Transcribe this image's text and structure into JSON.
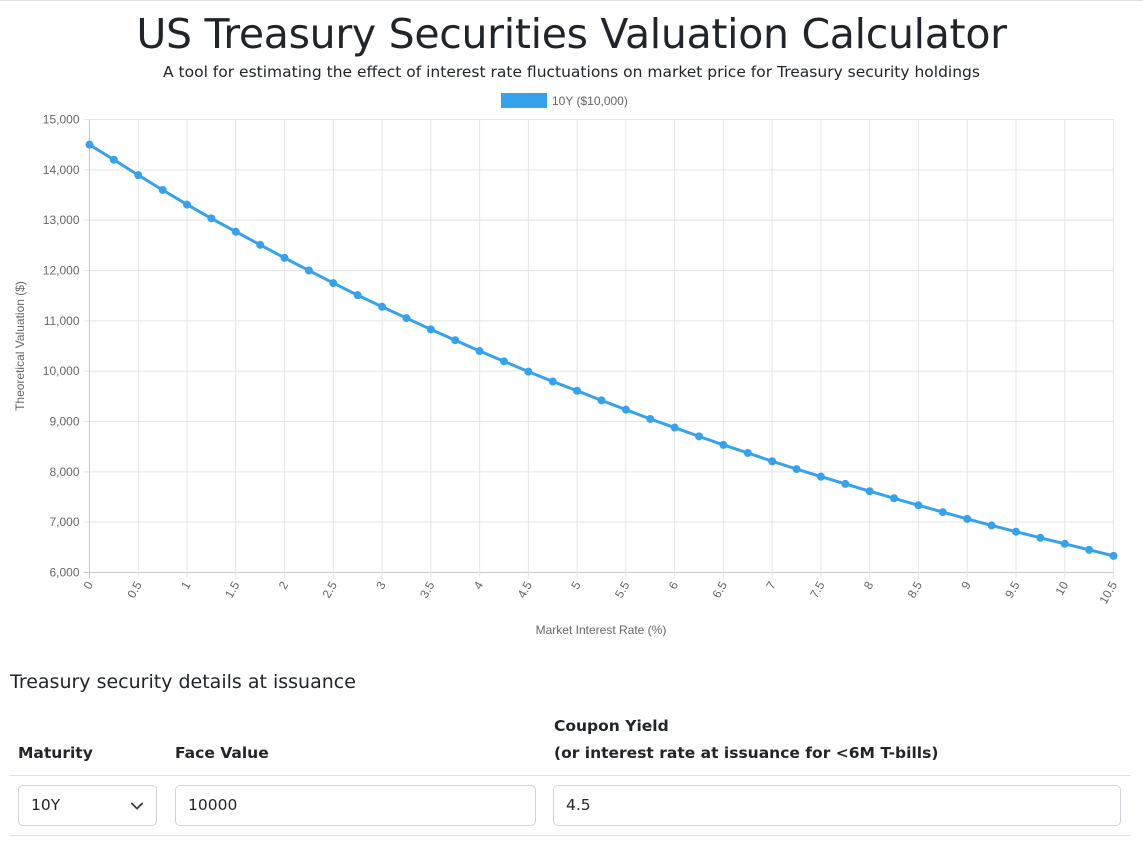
{
  "header": {
    "title": "US Treasury Securities Valuation Calculator",
    "subtitle": "A tool for estimating the effect of interest rate fluctuations on market price for Treasury security holdings"
  },
  "chart_data": {
    "type": "line",
    "title": "",
    "xlabel": "Market Interest Rate (%)",
    "ylabel": "Theoretical Valuation ($)",
    "x": [
      0,
      0.25,
      0.5,
      0.75,
      1,
      1.25,
      1.5,
      1.75,
      2,
      2.25,
      2.5,
      2.75,
      3,
      3.25,
      3.5,
      3.75,
      4,
      4.25,
      4.5,
      4.75,
      5,
      5.25,
      5.5,
      5.75,
      6,
      6.25,
      6.5,
      6.75,
      7,
      7.25,
      7.5,
      7.75,
      8,
      8.25,
      8.5,
      8.75,
      9,
      9.25,
      9.5,
      9.75,
      10,
      10.25,
      10.5
    ],
    "x_tick_labels": [
      "0",
      "0.5",
      "1",
      "1.5",
      "2",
      "2.5",
      "3",
      "3.5",
      "4",
      "4.5",
      "5",
      "5.5",
      "6",
      "6.5",
      "7",
      "7.5",
      "8",
      "8.5",
      "9",
      "9.5",
      "10",
      "10.5"
    ],
    "ylim": [
      6000,
      15000
    ],
    "y_tick_labels": [
      "15,000",
      "14,000",
      "13,000",
      "12,000",
      "11,000",
      "10,000",
      "9,000",
      "8,000",
      "7,000",
      "6,000"
    ],
    "series": [
      {
        "name": "10Y ($10,000)",
        "color": "#36a2eb",
        "values": [
          14500,
          14200,
          13895,
          13600,
          13310,
          13035,
          12770,
          12510,
          12250,
          12000,
          11750,
          11510,
          11280,
          11055,
          10830,
          10615,
          10400,
          10195,
          9990,
          9795,
          9610,
          9420,
          9235,
          9050,
          8880,
          8705,
          8535,
          8375,
          8210,
          8055,
          7905,
          7760,
          7615,
          7475,
          7335,
          7200,
          7065,
          6935,
          6810,
          6690,
          6570,
          6450,
          6330
        ]
      }
    ],
    "grid": true,
    "legend": "top-center"
  },
  "details": {
    "heading": "Treasury security details at issuance",
    "columns": {
      "maturity": "Maturity",
      "face_value": "Face Value",
      "coupon_line1": "Coupon Yield",
      "coupon_line2": "(or interest rate at issuance for <6M T-bills)"
    },
    "maturity_value": "10Y",
    "face_value": "10000",
    "coupon_value": "4.5"
  },
  "icons": {
    "maturity_dropdown": "chevron-down-icon"
  }
}
